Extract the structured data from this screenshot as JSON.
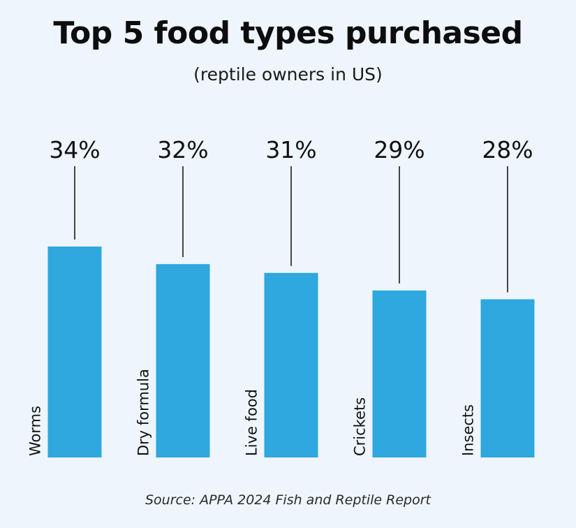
{
  "chart_data": {
    "type": "bar",
    "title": "Top 5 food types purchased",
    "subtitle": "(reptile owners in US)",
    "categories": [
      "Worms",
      "Dry formula",
      "Live food",
      "Crickets",
      "Insects"
    ],
    "values": [
      34,
      32,
      31,
      29,
      28
    ],
    "value_labels": [
      "34%",
      "32%",
      "31%",
      "29%",
      "28%"
    ],
    "unit": "%",
    "xlabel": "",
    "ylabel": "",
    "ylim": [
      10,
      34
    ],
    "grid": false,
    "legend": "none",
    "bar_color": "#2ea8de",
    "source": "Source: APPA 2024 Fish and Reptile Report"
  }
}
